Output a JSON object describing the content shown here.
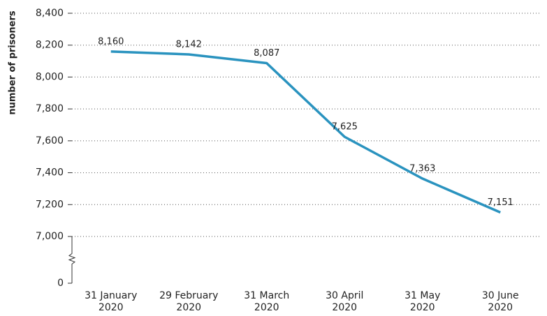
{
  "chart_data": {
    "type": "line",
    "y_label": "number of prisoners",
    "categories": [
      [
        "31 January",
        "2020"
      ],
      [
        "29 February",
        "2020"
      ],
      [
        "31 March",
        "2020"
      ],
      [
        "30 April",
        "2020"
      ],
      [
        "31 May",
        "2020"
      ],
      [
        "30 June",
        "2020"
      ]
    ],
    "series": [
      {
        "name": "number of prisoners",
        "color": "#2a93bf",
        "values": [
          8160,
          8142,
          8087,
          7625,
          7363,
          7151
        ],
        "value_labels": [
          "8,160",
          "8,142",
          "8,087",
          "7,625",
          "7,363",
          "7,151"
        ]
      }
    ],
    "ylim": [
      7000,
      8400
    ],
    "axis_break": true,
    "yticks": [
      0,
      {
        "value": 7000,
        "label": "7,000"
      },
      {
        "value": 7200,
        "label": "7,200"
      },
      {
        "value": 7400,
        "label": "7,400"
      },
      {
        "value": 7600,
        "label": "7,600"
      },
      {
        "value": 7800,
        "label": "7,800"
      },
      {
        "value": 8000,
        "label": "8,000"
      },
      {
        "value": 8200,
        "label": "8,200"
      },
      {
        "value": 8400,
        "label": "8,400"
      }
    ],
    "grid": true
  }
}
